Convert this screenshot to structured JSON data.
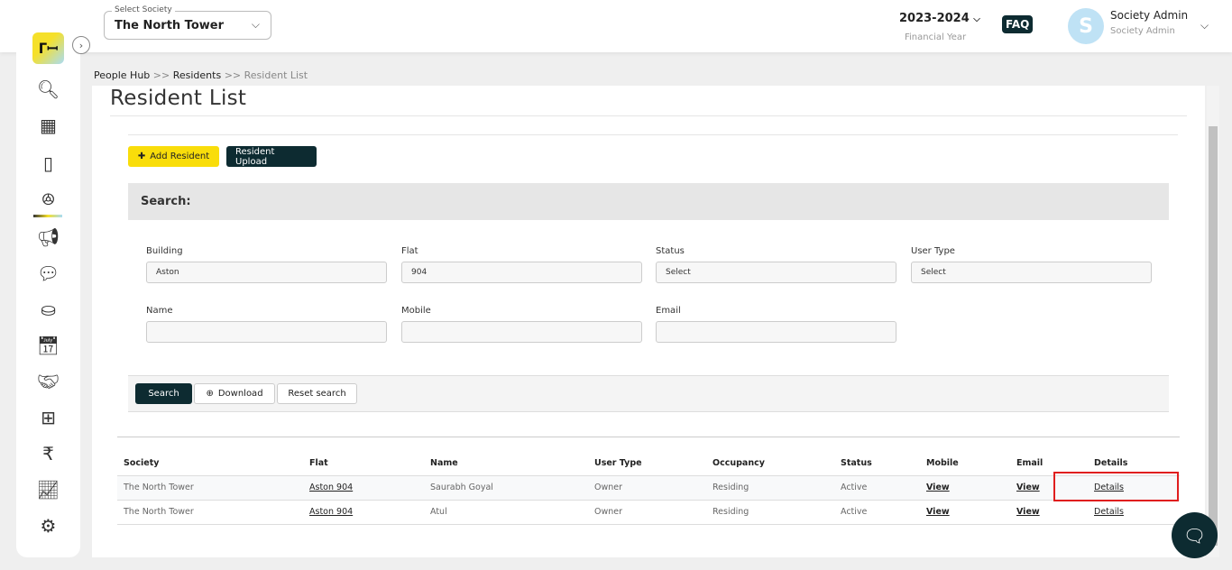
{
  "header": {
    "society_label": "Select Society",
    "society_value": "The North Tower",
    "financial_year": "2023-2024",
    "financial_year_label": "Financial Year",
    "faq": "FAQ",
    "avatar_initial": "S",
    "user_name": "Society Admin",
    "user_role": "Society Admin"
  },
  "breadcrumb": {
    "items": [
      "People Hub",
      ">>",
      "Residents",
      ">>",
      "Resident List"
    ]
  },
  "page": {
    "title": "Resident List",
    "add_resident": "Add Resident",
    "resident_upload": "Resident Upload",
    "search_heading": "Search:"
  },
  "filters": {
    "building_label": "Building",
    "building_value": "Aston",
    "flat_label": "Flat",
    "flat_value": "904",
    "status_label": "Status",
    "status_value": "Select",
    "user_type_label": "User Type",
    "user_type_value": "Select",
    "name_label": "Name",
    "name_value": "",
    "mobile_label": "Mobile",
    "mobile_value": "",
    "email_label": "Email",
    "email_value": ""
  },
  "actions": {
    "search": "Search",
    "download": "Download",
    "reset": "Reset search"
  },
  "table": {
    "headers": [
      "Society",
      "Flat",
      "Name",
      "User Type",
      "Occupancy",
      "Status",
      "Mobile",
      "Email",
      "Details"
    ],
    "rows": [
      [
        "The North Tower",
        "Aston 904",
        "Saurabh Goyal",
        "Owner",
        "Residing",
        "Active",
        "View",
        "View",
        "Details"
      ],
      [
        "The North Tower",
        "Aston 904",
        "Atul",
        "Owner",
        "Residing",
        "Active",
        "View",
        "View",
        "Details"
      ]
    ]
  },
  "colors": {
    "accent": "#f5e02a",
    "dark": "#0d2b31",
    "highlight": "#e01e1e"
  }
}
